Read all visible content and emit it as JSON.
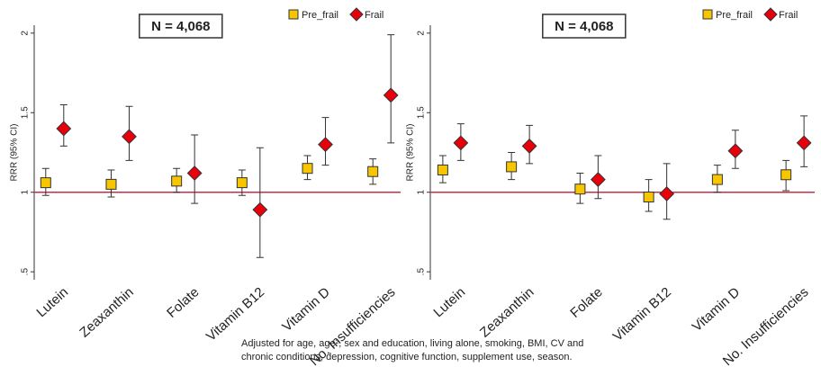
{
  "chart_data": [
    {
      "type": "errorbar",
      "annotation": "N = 4,068",
      "y_label": "RRR (95% CI)",
      "categories": [
        "Lutein",
        "Zeaxanthin",
        "Folate",
        "Vitamin B12",
        "Vitamin D",
        "No. Insufficiencies"
      ],
      "series": [
        {
          "name": "Pre_frail",
          "color": "#f7c600",
          "marker": "square",
          "values": [
            1.06,
            1.05,
            1.07,
            1.06,
            1.15,
            1.13
          ],
          "lower": [
            0.98,
            0.97,
            1.0,
            0.98,
            1.08,
            1.05
          ],
          "upper": [
            1.15,
            1.14,
            1.15,
            1.14,
            1.23,
            1.21
          ]
        },
        {
          "name": "Frail",
          "color": "#e8000b",
          "marker": "diamond",
          "values": [
            1.4,
            1.35,
            1.12,
            0.89,
            1.3,
            1.61
          ],
          "lower": [
            1.29,
            1.2,
            0.93,
            0.59,
            1.17,
            1.31
          ],
          "upper": [
            1.55,
            1.54,
            1.36,
            1.28,
            1.47,
            1.99
          ]
        }
      ],
      "ylim": [
        0.45,
        2.05
      ],
      "yticks": [
        {
          "value": 0.5,
          "label": ".5"
        },
        1,
        1.5,
        2
      ],
      "reference_line": 1,
      "reference_color": "#c0304a",
      "legend": "top-right"
    },
    {
      "type": "errorbar",
      "annotation": "N = 4,068",
      "y_label": "RRR (95% CI)",
      "categories": [
        "Lutein",
        "Zeaxanthin",
        "Folate",
        "Vitamin B12",
        "Vitamin D",
        "No. Insufficiencies"
      ],
      "series": [
        {
          "name": "Pre_frail",
          "color": "#f7c600",
          "marker": "square",
          "values": [
            1.14,
            1.16,
            1.02,
            0.97,
            1.08,
            1.11
          ],
          "lower": [
            1.06,
            1.08,
            0.93,
            0.88,
            1.0,
            1.01
          ],
          "upper": [
            1.23,
            1.25,
            1.12,
            1.08,
            1.17,
            1.2
          ]
        },
        {
          "name": "Frail",
          "color": "#e8000b",
          "marker": "diamond",
          "values": [
            1.31,
            1.29,
            1.08,
            0.99,
            1.26,
            1.31
          ],
          "lower": [
            1.2,
            1.18,
            0.96,
            0.83,
            1.15,
            1.16
          ],
          "upper": [
            1.43,
            1.42,
            1.23,
            1.18,
            1.39,
            1.48
          ]
        }
      ],
      "ylim": [
        0.45,
        2.05
      ],
      "yticks": [
        {
          "value": 0.5,
          "label": ".5"
        },
        1,
        1.5,
        2
      ],
      "reference_line": 1,
      "reference_color": "#c0304a",
      "legend": "top-right"
    }
  ],
  "caption": [
    "Adjusted for age, age², sex and education, living alone, smoking, BMI, CV and",
    "chronic conditions, depression, cognitive function, supplement use, season."
  ]
}
